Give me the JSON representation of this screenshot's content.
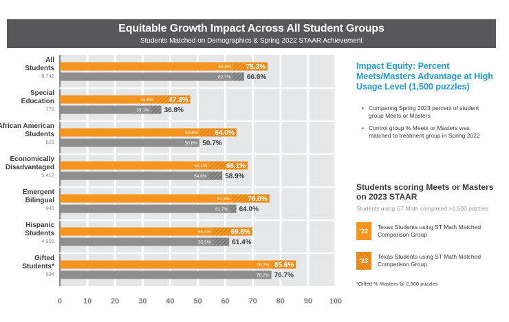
{
  "header": {
    "title": "Equitable Growth Impact Across All Student Groups",
    "subtitle": "Students Matched on Demographics & Spring 2022 STAAR Achievement"
  },
  "side_panel": {
    "impact_title": "Impact Equity: Percent Meets/Masters Advantage at High Usage Level (1,500 puzzles)",
    "bullets": [
      "Comparing Spring 2023 percent of student group Meets or Masters",
      "Control group % Meets or Masters was matched to treatment group in Spring 2022"
    ],
    "legend_title": "Students scoring Meets or Masters on 2023 STAAR",
    "legend_note": "Students using ST Math completed >1,500 puzzles",
    "legend": [
      {
        "swatch_text": "'22",
        "label": "Texas Students using ST Math Matched Comparison Group",
        "color": "#f7941d"
      },
      {
        "swatch_text": "'23",
        "label": "Texas Students using ST Math Matched Comparison Group",
        "color": "#f7941d"
      }
    ],
    "footnote": "*Gifted % Masters @ 2,500 puzzles"
  },
  "chart_data": {
    "type": "bar",
    "orientation": "horizontal",
    "xlim": [
      0,
      100
    ],
    "xticks": [
      "0",
      "10",
      "20",
      "30",
      "40",
      "50",
      "60",
      "70",
      "80",
      "90",
      "100"
    ],
    "grid": true,
    "colors": {
      "st_math": "#f7941d",
      "st_math_hatch": "#c5731a",
      "comparison": "#8e8e8e",
      "comparison_hatch": "#5c5c5c"
    },
    "groups": [
      {
        "name": [
          "All",
          "Students"
        ],
        "n": "8,742",
        "st_math_2022": 62.8,
        "st_math_2023": 75.3,
        "st_math_2022_label": "62.8%",
        "st_math_2023_label": "75.3%",
        "comparison_2022": 62.7,
        "comparison_2023": 66.8,
        "comparison_2022_label": "62.7%",
        "comparison_2023_label": "66.8%"
      },
      {
        "name": [
          "Special",
          "Education"
        ],
        "n": "778",
        "st_math_2022": 34.6,
        "st_math_2023": 47.3,
        "st_math_2022_label": "34.6%",
        "st_math_2023_label": "47.3%",
        "comparison_2022": 33.1,
        "comparison_2023": 36.8,
        "comparison_2022_label": "33.1%",
        "comparison_2023_label": "36.8%"
      },
      {
        "name": [
          "African American",
          "Students"
        ],
        "n": "823",
        "st_math_2022": 50.8,
        "st_math_2023": 64.0,
        "st_math_2022_label": "50.8%",
        "st_math_2023_label": "64.0%",
        "comparison_2022": 50.6,
        "comparison_2023": 50.7,
        "comparison_2022_label": "50.6%",
        "comparison_2023_label": "50.7%"
      },
      {
        "name": [
          "Economically",
          "Disadvantaged"
        ],
        "n": "5,417",
        "st_math_2022": 54.1,
        "st_math_2023": 68.1,
        "st_math_2022_label": "54.1%",
        "st_math_2023_label": "68.1%",
        "comparison_2022": 54.0,
        "comparison_2023": 58.9,
        "comparison_2022_label": "54.0%",
        "comparison_2023_label": "58.9%"
      },
      {
        "name": [
          "Emergent",
          "Bilingual"
        ],
        "n": "845",
        "st_math_2022": 62.3,
        "st_math_2023": 76.0,
        "st_math_2022_label": "62.3%",
        "st_math_2023_label": "76.0%",
        "comparison_2022": 61.7,
        "comparison_2023": 64.0,
        "comparison_2022_label": "61.7%",
        "comparison_2023_label": "64.0%"
      },
      {
        "name": [
          "Hispanic",
          "Students"
        ],
        "n": "4,999",
        "st_math_2022": 55.4,
        "st_math_2023": 69.8,
        "st_math_2022_label": "55.4%",
        "st_math_2023_label": "69.8%",
        "comparison_2022": 55.5,
        "comparison_2023": 61.4,
        "comparison_2022_label": "55.5%",
        "comparison_2023_label": "61.4%"
      },
      {
        "name": [
          "Gifted",
          "Students*"
        ],
        "n": "694",
        "st_math_2022": 76.7,
        "st_math_2023": 85.6,
        "st_math_2022_label": "76.7%",
        "st_math_2023_label": "85.6%",
        "comparison_2022": 76.7,
        "comparison_2023": 76.7,
        "comparison_2022_label": "76.7%",
        "comparison_2023_label": "76.7%"
      }
    ]
  }
}
